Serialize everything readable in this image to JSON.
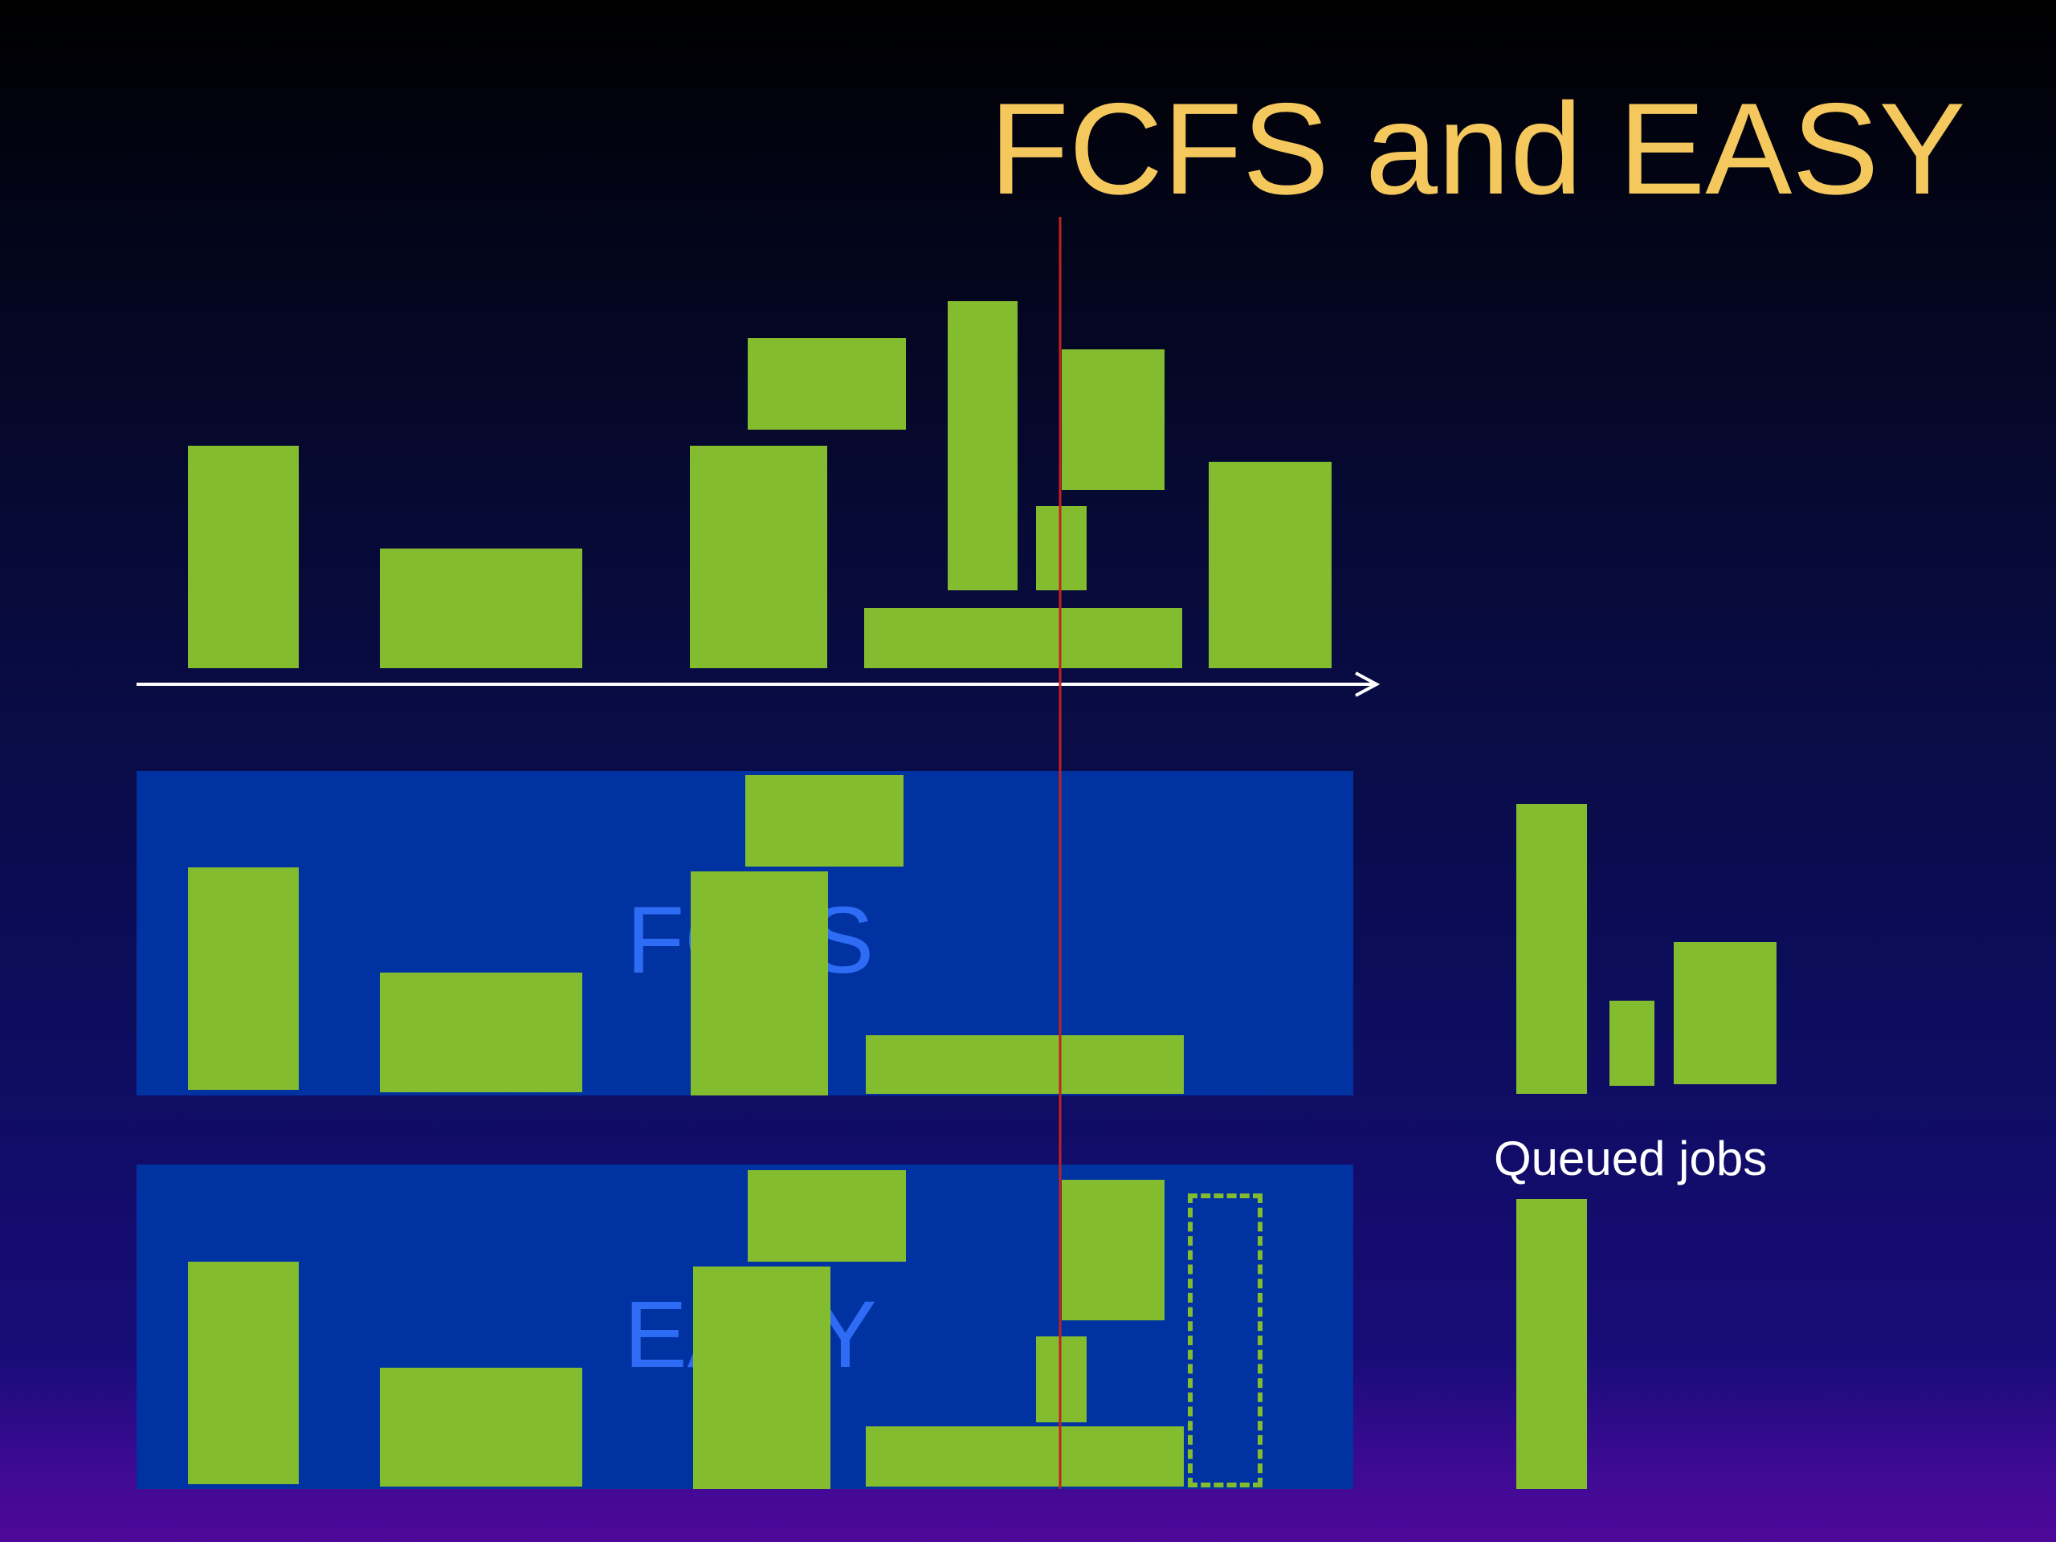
{
  "slide": {
    "title": "FCFS and EASY",
    "fcfs_label": "FCFS",
    "easy_label": "EASY",
    "queued_label": "Queued jobs"
  },
  "colors": {
    "title": "#f5c85e",
    "job": "#84bc2f",
    "panel": "#0033a1",
    "panel_label": "#2f6cf6",
    "current_time_line": "#c42020",
    "axis": "#ffffff"
  }
}
